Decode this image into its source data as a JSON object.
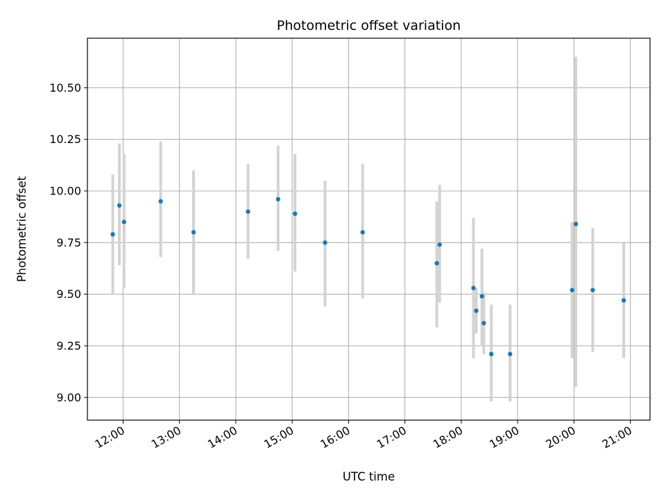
{
  "chart_data": {
    "type": "scatter",
    "title": "Photometric offset variation",
    "xlabel": "UTC time",
    "ylabel": "Photometric offset",
    "x_axis": {
      "kind": "time",
      "range": [
        "11:22",
        "21:21"
      ],
      "ticks": [
        "12:00",
        "13:00",
        "14:00",
        "15:00",
        "16:00",
        "17:00",
        "18:00",
        "19:00",
        "20:00",
        "21:00"
      ]
    },
    "y_axis": {
      "range": [
        8.89,
        10.74
      ],
      "ticks": [
        "9.00",
        "9.25",
        "9.50",
        "9.75",
        "10.00",
        "10.25",
        "10.50"
      ]
    },
    "grid": true,
    "colors": {
      "point": "#1f77b4",
      "errorbar": "#d3d3d3",
      "grid": "#b0b0b0"
    },
    "series": [
      {
        "points": [
          {
            "x": "11:49",
            "y": 9.79,
            "yerr_low": 9.5,
            "yerr_high": 10.08
          },
          {
            "x": "11:56",
            "y": 9.93,
            "yerr_low": 9.64,
            "yerr_high": 10.23
          },
          {
            "x": "12:01",
            "y": 9.85,
            "yerr_low": 9.53,
            "yerr_high": 10.18
          },
          {
            "x": "12:40",
            "y": 9.95,
            "yerr_low": 9.68,
            "yerr_high": 10.24
          },
          {
            "x": "13:15",
            "y": 9.8,
            "yerr_low": 9.5,
            "yerr_high": 10.1
          },
          {
            "x": "14:13",
            "y": 9.9,
            "yerr_low": 9.67,
            "yerr_high": 10.13
          },
          {
            "x": "14:45",
            "y": 9.96,
            "yerr_low": 9.71,
            "yerr_high": 10.22
          },
          {
            "x": "15:03",
            "y": 9.89,
            "yerr_low": 9.61,
            "yerr_high": 10.18
          },
          {
            "x": "15:35",
            "y": 9.75,
            "yerr_low": 9.44,
            "yerr_high": 10.05
          },
          {
            "x": "16:15",
            "y": 9.8,
            "yerr_low": 9.48,
            "yerr_high": 10.13
          },
          {
            "x": "17:34",
            "y": 9.65,
            "yerr_low": 9.34,
            "yerr_high": 9.95
          },
          {
            "x": "17:37",
            "y": 9.74,
            "yerr_low": 9.46,
            "yerr_high": 10.03
          },
          {
            "x": "18:13",
            "y": 9.53,
            "yerr_low": 9.19,
            "yerr_high": 9.87
          },
          {
            "x": "18:16",
            "y": 9.42,
            "yerr_low": 9.31,
            "yerr_high": 9.53
          },
          {
            "x": "18:22",
            "y": 9.49,
            "yerr_low": 9.25,
            "yerr_high": 9.72
          },
          {
            "x": "18:24",
            "y": 9.36,
            "yerr_low": 9.21,
            "yerr_high": 9.51
          },
          {
            "x": "18:32",
            "y": 9.21,
            "yerr_low": 8.98,
            "yerr_high": 9.45
          },
          {
            "x": "18:52",
            "y": 9.21,
            "yerr_low": 8.98,
            "yerr_high": 9.45
          },
          {
            "x": "19:58",
            "y": 9.52,
            "yerr_low": 9.19,
            "yerr_high": 9.85
          },
          {
            "x": "20:02",
            "y": 9.84,
            "yerr_low": 9.05,
            "yerr_high": 10.65
          },
          {
            "x": "20:20",
            "y": 9.52,
            "yerr_low": 9.22,
            "yerr_high": 9.82
          },
          {
            "x": "20:53",
            "y": 9.47,
            "yerr_low": 9.19,
            "yerr_high": 9.75
          }
        ]
      }
    ]
  }
}
